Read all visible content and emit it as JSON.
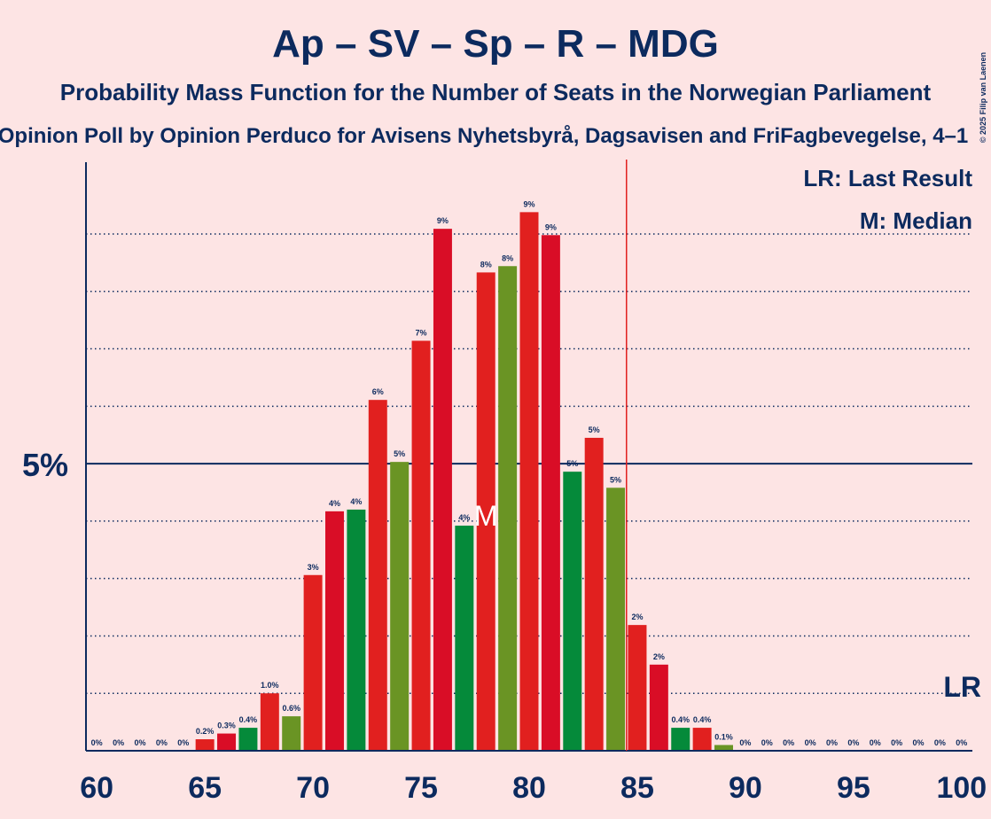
{
  "chart_data": {
    "type": "bar",
    "title": "Ap – SV – Sp – R – MDG",
    "subtitle": "Probability Mass Function for the Number of Seats in the Norwegian Parliament",
    "caption": "Opinion Poll by Opinion Perduco for Avisens Nyhetsbyrå, Dagsavisen and FriFagbevegelse, 4–1",
    "copyright": "© 2025 Filip van Laenen",
    "x": [
      60,
      61,
      62,
      63,
      64,
      65,
      66,
      67,
      68,
      69,
      70,
      71,
      72,
      73,
      74,
      75,
      76,
      77,
      78,
      79,
      80,
      81,
      82,
      83,
      84,
      85,
      86,
      87,
      88,
      89,
      90,
      91,
      92,
      93,
      94,
      95,
      96,
      97,
      98,
      99,
      100
    ],
    "values": [
      0,
      0,
      0,
      0,
      0,
      0.2,
      0.3,
      0.4,
      1.0,
      0.6,
      3.06,
      4.17,
      4.2,
      6.11,
      5.03,
      7.14,
      9.09,
      3.92,
      8.33,
      8.44,
      9.38,
      8.98,
      4.86,
      5.45,
      4.58,
      2.19,
      1.5,
      0.4,
      0.4,
      0.1,
      0,
      0,
      0,
      0,
      0,
      0,
      0,
      0,
      0,
      0,
      0
    ],
    "value_labels": [
      "0%",
      "0%",
      "0%",
      "0%",
      "0%",
      "0.2%",
      "0.3%",
      "0.4%",
      "1.0%",
      "0.6%",
      "3%",
      "4%",
      "4%",
      "6%",
      "5%",
      "7%",
      "9%",
      "4%",
      "8%",
      "8%",
      "9%",
      "9%",
      "5%",
      "5%",
      "5%",
      "2%",
      "2%",
      "0.4%",
      "0.4%",
      "0.1%",
      "0%",
      "0%",
      "0%",
      "0%",
      "0%",
      "0%",
      "0%",
      "0%",
      "0%",
      "0%",
      "0%"
    ],
    "color_cycle": [
      "#e1201f",
      "#d90d26",
      "#058a3a",
      "#e1201f",
      "#6a9424"
    ],
    "xlim": [
      59.5,
      100.5
    ],
    "xticks": [
      60,
      65,
      70,
      75,
      80,
      85,
      90,
      95,
      100
    ],
    "ylim": [
      0,
      10.25
    ],
    "yticks": [
      {
        "value": 5,
        "label": "5%"
      }
    ],
    "minor_yticks": [
      1,
      2,
      3,
      4,
      6,
      7,
      8,
      9
    ],
    "last_result": 85,
    "last_result_label": "LR",
    "median": 78,
    "median_label": "M",
    "legend": [
      "LR: Last Result",
      "M: Median"
    ]
  }
}
